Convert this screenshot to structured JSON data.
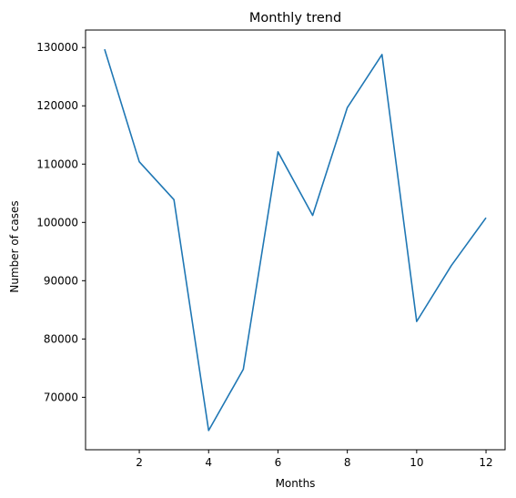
{
  "chart_data": {
    "type": "line",
    "title": "Monthly trend",
    "xlabel": "Months",
    "ylabel": "Number of cases",
    "x": [
      1,
      2,
      3,
      4,
      5,
      6,
      7,
      8,
      9,
      10,
      11,
      12
    ],
    "series": [
      {
        "values": [
          129700,
          110400,
          103900,
          64300,
          74800,
          112100,
          101200,
          119700,
          128800,
          83000,
          92600,
          100800
        ],
        "color": "#1f77b4"
      }
    ],
    "xlim": [
      0.45,
      12.55
    ],
    "ylim": [
      61000,
      133000
    ],
    "xticks": [
      2,
      4,
      6,
      8,
      10,
      12
    ],
    "xtick_labels": [
      "2",
      "4",
      "6",
      "8",
      "10",
      "12"
    ],
    "yticks": [
      70000,
      80000,
      90000,
      100000,
      110000,
      120000,
      130000
    ],
    "ytick_labels": [
      "70000",
      "80000",
      "90000",
      "100000",
      "110000",
      "120000",
      "130000"
    ],
    "grid": false,
    "legend": false
  }
}
